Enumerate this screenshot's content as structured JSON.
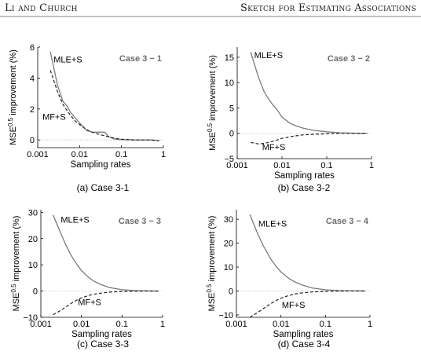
{
  "header": {
    "left": "Li and Church",
    "right": "Sketch for Estimating Associations"
  },
  "colors": {
    "mle_line": "#7a7a7a",
    "mf_line": "#222222",
    "axis": "#000000",
    "case_label": "#6d6d6d",
    "zero_grid": "#bdbdbd"
  },
  "chart_data": [
    {
      "type": "line",
      "caption": "(a) Case 3-1",
      "case_label": "Case 3 − 1",
      "xlabel": "Sampling rates",
      "ylabel_main": "MSE",
      "ylabel_sup": "0.5",
      "ylabel_rest": " improvement (%)",
      "xscale": "log",
      "xlim": [
        0.001,
        1
      ],
      "ylim": [
        -0.5,
        6
      ],
      "xticks": [
        0.001,
        0.01,
        0.1,
        1
      ],
      "xtick_labels": [
        "0.001",
        "0.01",
        "0.1",
        "1"
      ],
      "yticks": [
        0,
        2,
        4,
        6
      ],
      "ytick_labels": [
        "0",
        "2",
        "4",
        "6"
      ],
      "series": [
        {
          "name": "MLE+S",
          "style": "solid",
          "x": [
            0.002,
            0.003,
            0.004,
            0.005,
            0.006,
            0.008,
            0.01,
            0.015,
            0.02,
            0.03,
            0.04,
            0.05,
            0.07,
            0.1,
            0.2,
            0.5,
            0.8
          ],
          "y": [
            5.7,
            3.5,
            2.5,
            2.2,
            1.8,
            1.4,
            1.1,
            0.6,
            0.5,
            0.5,
            0.5,
            0.2,
            0.05,
            0.02,
            0.0,
            0.0,
            -0.05
          ]
        },
        {
          "name": "MF+S",
          "style": "dashed",
          "x": [
            0.002,
            0.003,
            0.004,
            0.005,
            0.006,
            0.008,
            0.01,
            0.015,
            0.02,
            0.03,
            0.05,
            0.07,
            0.1,
            0.2,
            0.5,
            0.8
          ],
          "y": [
            4.5,
            3.1,
            2.3,
            1.9,
            1.6,
            1.2,
            1.0,
            0.65,
            0.5,
            0.35,
            0.2,
            0.1,
            0.05,
            0.0,
            0.0,
            -0.05
          ]
        }
      ],
      "labels": [
        {
          "text": "MLE+S",
          "x": 0.0024,
          "y": 5.0
        },
        {
          "text": "MF+S",
          "x": 0.0013,
          "y": 1.3
        }
      ]
    },
    {
      "type": "line",
      "caption": "(b) Case 3-2",
      "case_label": "Case 3 − 2",
      "xlabel": "Sampling rates",
      "ylabel_main": "MSE",
      "ylabel_sup": "0.5",
      "ylabel_rest": " improvement (%)",
      "xscale": "log",
      "xlim": [
        0.001,
        1
      ],
      "ylim": [
        -5,
        17
      ],
      "xticks": [
        0.001,
        0.01,
        0.1,
        1
      ],
      "xtick_labels": [
        "0.001",
        "0.01",
        "0.1",
        "1"
      ],
      "yticks": [
        -5,
        0,
        5,
        10,
        15
      ],
      "ytick_labels": [
        "−5",
        "0",
        "5",
        "10",
        "15"
      ],
      "series": [
        {
          "name": "MLE+S",
          "style": "solid",
          "x": [
            0.002,
            0.003,
            0.004,
            0.005,
            0.006,
            0.008,
            0.01,
            0.015,
            0.02,
            0.03,
            0.05,
            0.1,
            0.2,
            0.5,
            0.8
          ],
          "y": [
            16,
            11,
            8.2,
            6.8,
            5.8,
            4.5,
            3.2,
            2.0,
            1.5,
            1.0,
            0.6,
            0.3,
            0.1,
            0.0,
            0.0
          ]
        },
        {
          "name": "MF+S",
          "style": "dashed",
          "x": [
            0.002,
            0.003,
            0.004,
            0.005,
            0.006,
            0.008,
            0.01,
            0.015,
            0.02,
            0.03,
            0.05,
            0.1,
            0.2,
            0.5,
            0.8
          ],
          "y": [
            -1.8,
            -2.1,
            -2.0,
            -1.8,
            -1.6,
            -1.3,
            -1.0,
            -0.7,
            -0.5,
            -0.3,
            -0.2,
            -0.1,
            0.0,
            0.0,
            0.0
          ]
        }
      ],
      "labels": [
        {
          "text": "MLE+S",
          "x": 0.0024,
          "y": 14.8
        },
        {
          "text": "MF+S",
          "x": 0.0036,
          "y": -3.3
        }
      ]
    },
    {
      "type": "line",
      "caption": "(c) Case 3-3",
      "case_label": "Case 3 − 3",
      "xlabel": "Sampling rates",
      "ylabel_main": "MSE",
      "ylabel_sup": "0.5",
      "ylabel_rest": " improvement (%)",
      "xscale": "log",
      "xlim": [
        0.001,
        1
      ],
      "ylim": [
        -10,
        31
      ],
      "xticks": [
        0.001,
        0.01,
        0.1,
        1
      ],
      "xtick_labels": [
        "0.001",
        "0.01",
        "0.1",
        "1"
      ],
      "yticks": [
        -10,
        0,
        10,
        20,
        30
      ],
      "ytick_labels": [
        "−10",
        "0",
        "10",
        "20",
        "30"
      ],
      "series": [
        {
          "name": "MLE+S",
          "style": "solid",
          "x": [
            0.002,
            0.003,
            0.004,
            0.005,
            0.006,
            0.008,
            0.01,
            0.015,
            0.02,
            0.03,
            0.05,
            0.1,
            0.2,
            0.5,
            0.8
          ],
          "y": [
            29,
            22.5,
            18,
            15,
            12.8,
            9.8,
            7.8,
            5.2,
            3.8,
            2.5,
            1.3,
            0.5,
            0.2,
            0.05,
            0.0
          ]
        },
        {
          "name": "MF+S",
          "style": "dashed",
          "x": [
            0.002,
            0.003,
            0.004,
            0.005,
            0.006,
            0.008,
            0.01,
            0.015,
            0.02,
            0.03,
            0.05,
            0.1,
            0.2,
            0.5,
            0.8
          ],
          "y": [
            -9,
            -7.5,
            -6.2,
            -5.2,
            -4.4,
            -3.3,
            -2.6,
            -1.7,
            -1.2,
            -0.8,
            -0.4,
            -0.15,
            -0.05,
            0.0,
            0.0
          ]
        }
      ],
      "labels": [
        {
          "text": "MLE+S",
          "x": 0.0031,
          "y": 26.0
        },
        {
          "text": "MF+S",
          "x": 0.0082,
          "y": -5.3
        }
      ]
    },
    {
      "type": "line",
      "caption": "(d) Case 3-4",
      "case_label": "Case 3 − 4",
      "xlabel": "Sampling rates",
      "ylabel_main": "MSE",
      "ylabel_sup": "0.5",
      "ylabel_rest": " improvement (%)",
      "xscale": "log",
      "xlim": [
        0.001,
        1
      ],
      "ylim": [
        -11,
        34
      ],
      "xticks": [
        0.001,
        0.01,
        0.1,
        1
      ],
      "xtick_labels": [
        "0.001",
        "0.01",
        "0.1",
        "1"
      ],
      "yticks": [
        -10,
        0,
        10,
        20,
        30
      ],
      "ytick_labels": [
        "−10",
        "0",
        "10",
        "20",
        "30"
      ],
      "series": [
        {
          "name": "MLE+S",
          "style": "solid",
          "x": [
            0.002,
            0.003,
            0.004,
            0.005,
            0.006,
            0.008,
            0.01,
            0.015,
            0.02,
            0.03,
            0.05,
            0.1,
            0.2,
            0.5,
            0.8
          ],
          "y": [
            32,
            24,
            19,
            15.8,
            13.2,
            10,
            8,
            5.3,
            3.9,
            2.5,
            1.3,
            0.5,
            0.2,
            0.05,
            0.0
          ]
        },
        {
          "name": "MF+S",
          "style": "dashed",
          "x": [
            0.002,
            0.003,
            0.004,
            0.005,
            0.006,
            0.008,
            0.01,
            0.015,
            0.02,
            0.03,
            0.05,
            0.1,
            0.2,
            0.5,
            0.8
          ],
          "y": [
            -11,
            -9,
            -7.4,
            -6.2,
            -5.2,
            -3.9,
            -3.0,
            -1.9,
            -1.3,
            -0.8,
            -0.4,
            -0.15,
            -0.05,
            0.0,
            0.0
          ]
        }
      ],
      "labels": [
        {
          "text": "MLE+S",
          "x": 0.0031,
          "y": 27.0
        },
        {
          "text": "MF+S",
          "x": 0.0105,
          "y": -7.0
        }
      ]
    }
  ]
}
